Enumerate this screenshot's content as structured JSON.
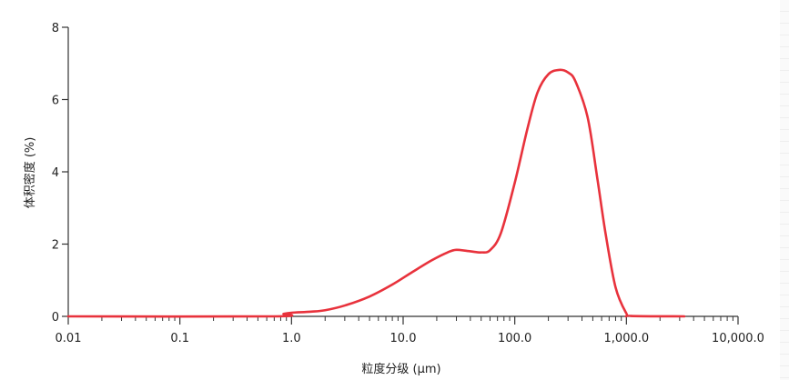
{
  "chart_data": {
    "type": "line",
    "xscale": "log",
    "xlim": [
      0.01,
      10000
    ],
    "ylim": [
      0,
      8
    ],
    "xlabel": "粒度分级 (μm)",
    "ylabel": "体积密度 (%)",
    "x_ticks": [
      "0.01",
      "0.1",
      "1.0",
      "10.0",
      "100.0",
      "1,000.0",
      "10,000.0"
    ],
    "y_ticks": [
      "0",
      "2",
      "4",
      "6",
      "8"
    ],
    "grid": false,
    "colors": {
      "series": "#e8323c",
      "axis": "#333333"
    },
    "series": [
      {
        "x": [
          0.01,
          0.7,
          0.85,
          1.0,
          1.5,
          2.0,
          3.0,
          5.0,
          8.0,
          12.0,
          18.0,
          25.0,
          30.0,
          40.0,
          50.0,
          60.0,
          75.0,
          100.0,
          130.0,
          160.0,
          200.0,
          250.0,
          300.0,
          350.0,
          450.0,
          550.0,
          650.0,
          800.0,
          1000.0,
          1100.0,
          3300.0
        ],
        "y": [
          0.0,
          0.0,
          0.07,
          0.1,
          0.13,
          0.17,
          0.3,
          0.55,
          0.88,
          1.22,
          1.55,
          1.77,
          1.84,
          1.8,
          1.77,
          1.83,
          2.3,
          3.7,
          5.2,
          6.2,
          6.7,
          6.82,
          6.75,
          6.5,
          5.5,
          3.8,
          2.3,
          0.8,
          0.08,
          0.01,
          0.0
        ]
      }
    ]
  }
}
